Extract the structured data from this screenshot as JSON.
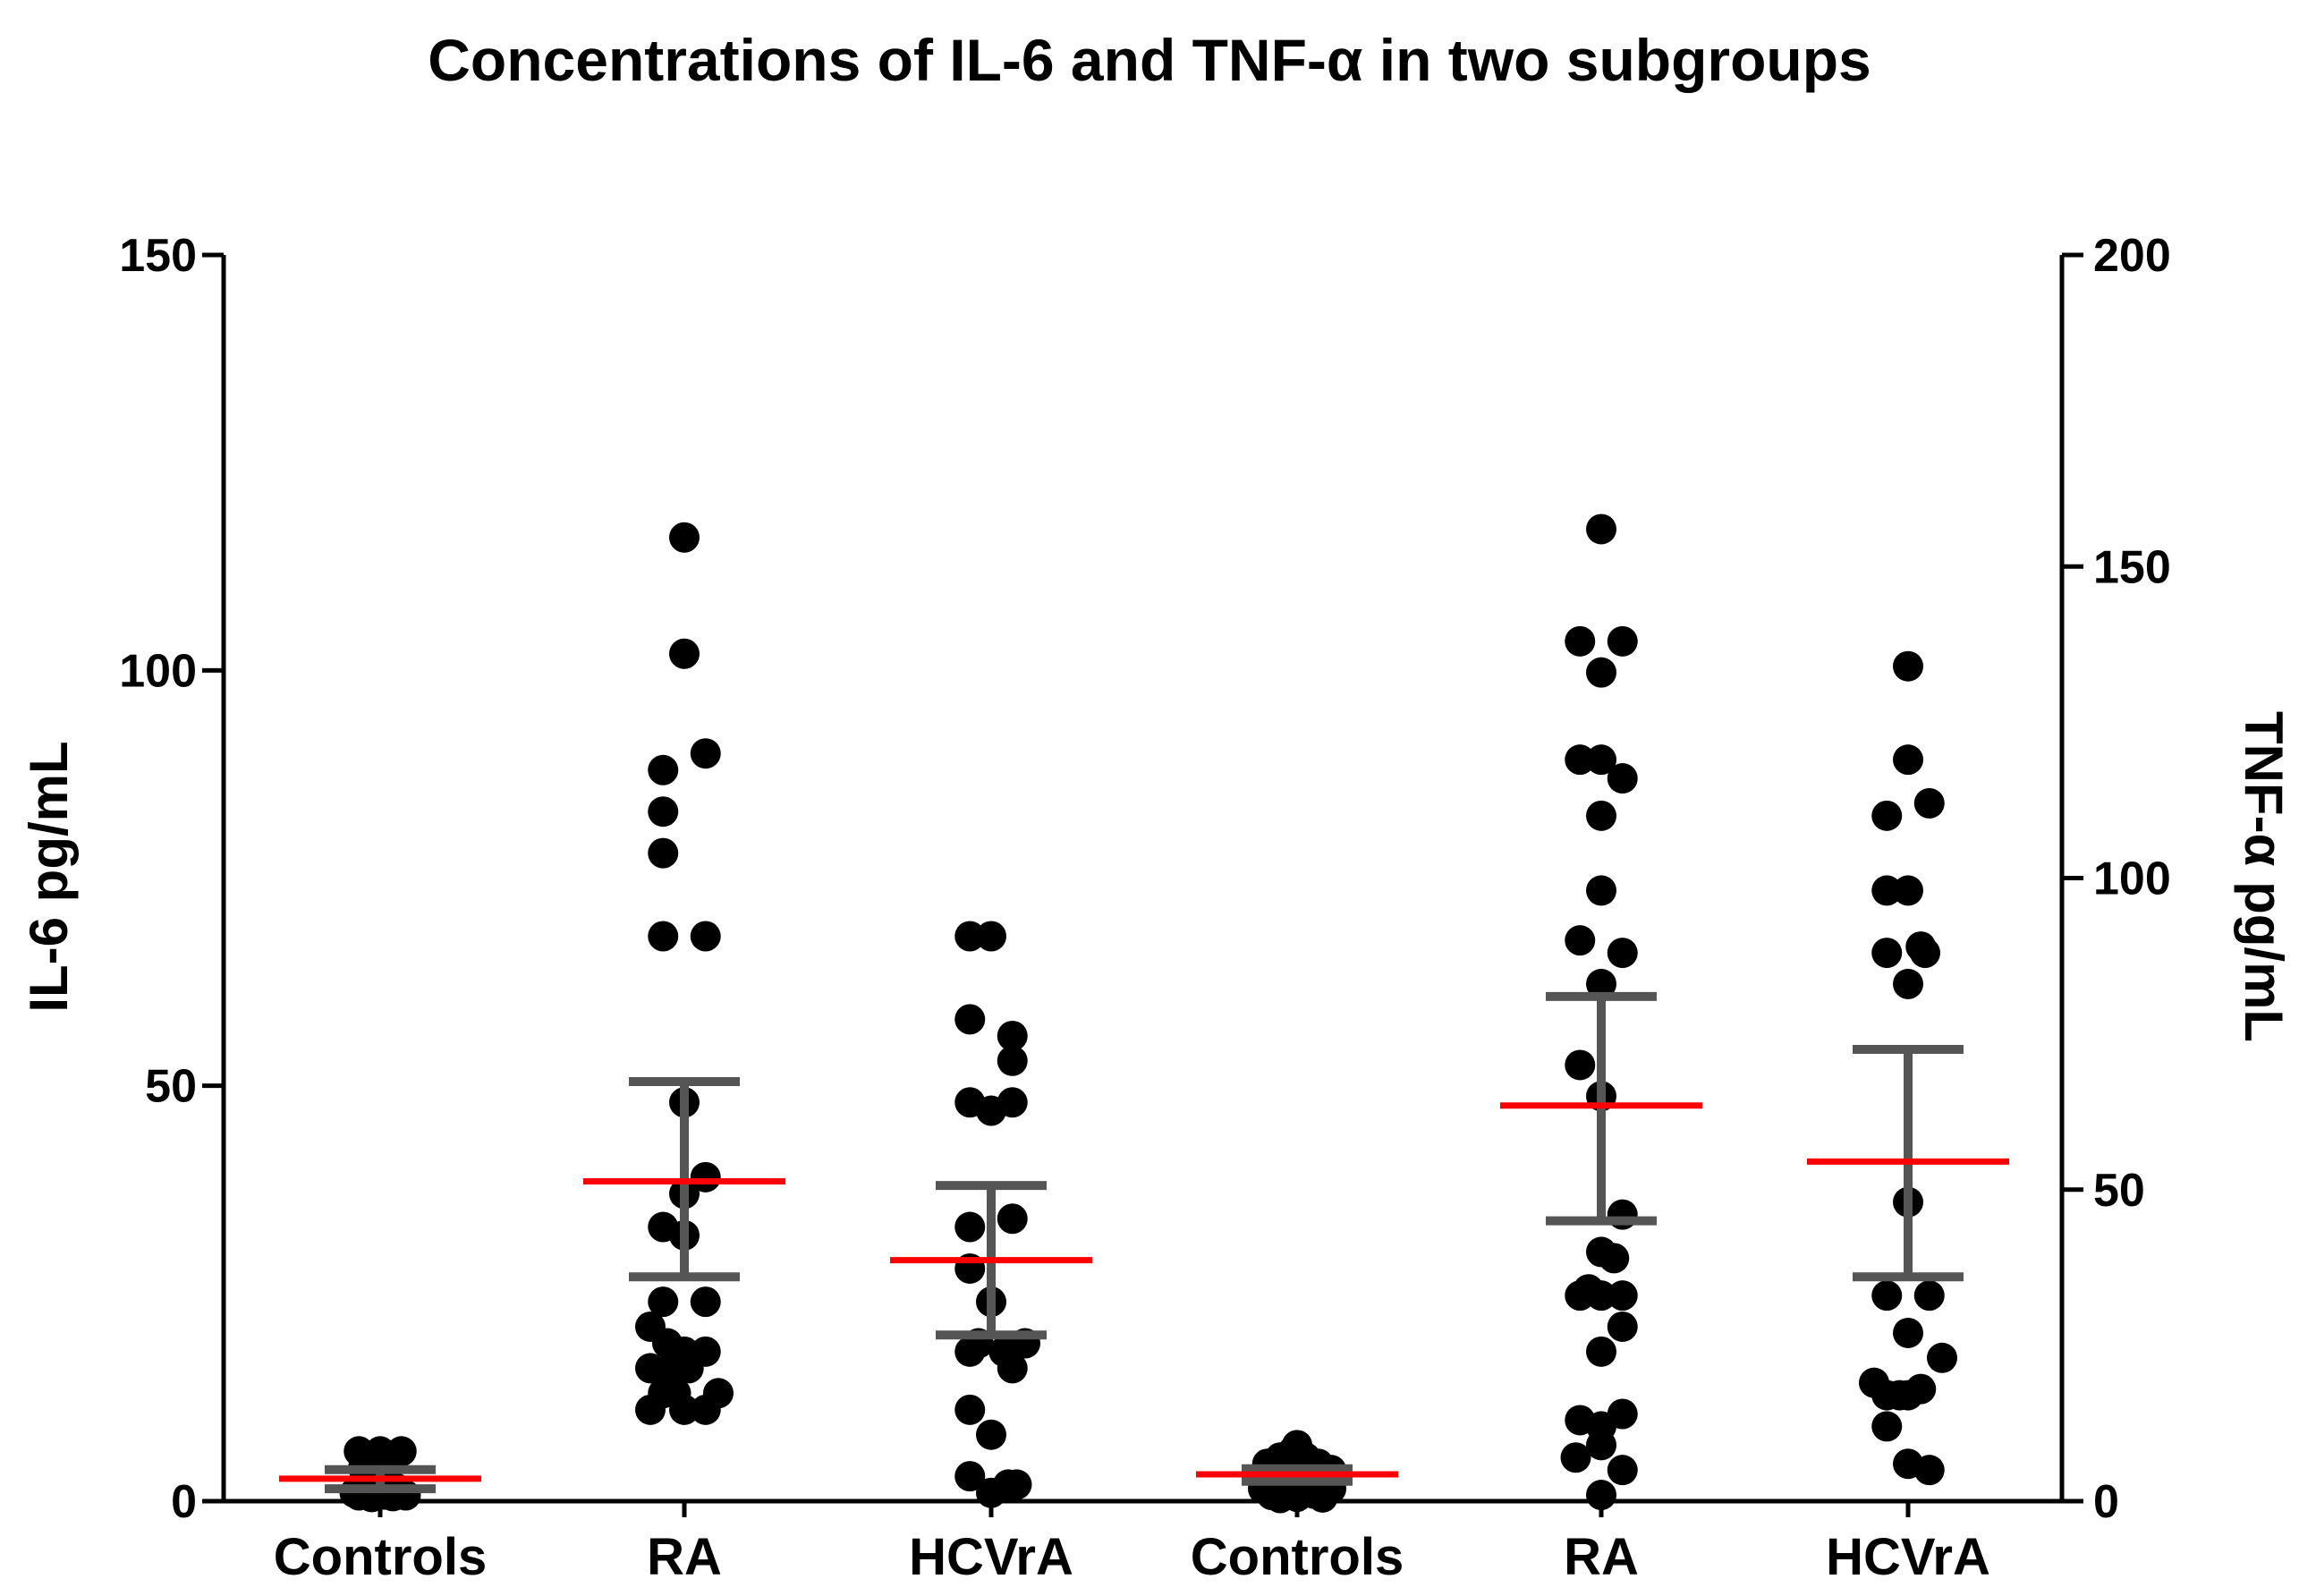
{
  "chart_data": {
    "type": "scatter",
    "title": "Concentrations of IL-6 and TNF-α in two subgroups",
    "categories": [
      "Controls",
      "RA",
      "HCVrA",
      "Controls",
      "RA",
      "HCVrA"
    ],
    "left_axis": {
      "label": "IL-6  pg/mL",
      "ylim": [
        0,
        150
      ],
      "ticks": [
        "0",
        "50",
        "100",
        "150"
      ],
      "tick_values": [
        0,
        50,
        100,
        150
      ]
    },
    "right_axis": {
      "label": "TNF-α pg/mL",
      "ylim": [
        0,
        200
      ],
      "ticks": [
        "0",
        "50",
        "100",
        "150",
        "200"
      ],
      "tick_values": [
        0,
        50,
        100,
        150,
        200
      ]
    },
    "colors": {
      "points": "#000000",
      "mean": "#ff0000",
      "error_bar": "#555555",
      "axis": "#000000"
    },
    "groups": [
      {
        "category": "Controls",
        "measure": "IL-6",
        "axis": "left",
        "points": [
          [
            -0.3,
            1
          ],
          [
            -0.25,
            0.7
          ],
          [
            -0.2,
            1.5
          ],
          [
            -0.15,
            1
          ],
          [
            -0.1,
            0.5
          ],
          [
            -0.05,
            1.3
          ],
          [
            0.0,
            2
          ],
          [
            0.05,
            0.8
          ],
          [
            0.1,
            1.2
          ],
          [
            0.15,
            0.6
          ],
          [
            0.2,
            1.5
          ],
          [
            0.25,
            0.9
          ],
          [
            0.3,
            0.7
          ],
          [
            -0.2,
            4
          ],
          [
            -0.05,
            3
          ],
          [
            0.08,
            3.5
          ],
          [
            -0.25,
            6
          ],
          [
            0.0,
            6
          ],
          [
            0.25,
            6
          ],
          [
            -0.1,
            5
          ],
          [
            0.15,
            5
          ]
        ],
        "mean": 2.7,
        "err_low": 1.5,
        "err_high": 3.8
      },
      {
        "category": "RA",
        "measure": "IL-6",
        "axis": "left",
        "points": [
          [
            0,
            116
          ],
          [
            0,
            102
          ],
          [
            -0.25,
            88
          ],
          [
            0.25,
            90
          ],
          [
            -0.25,
            83
          ],
          [
            -0.25,
            78
          ],
          [
            -0.25,
            68
          ],
          [
            0.25,
            68
          ],
          [
            0,
            48
          ],
          [
            0.25,
            39
          ],
          [
            0,
            37
          ],
          [
            -0.25,
            33
          ],
          [
            0,
            32
          ],
          [
            0.25,
            24
          ],
          [
            -0.25,
            24
          ],
          [
            -0.4,
            21
          ],
          [
            -0.2,
            19
          ],
          [
            0,
            18
          ],
          [
            0.25,
            18
          ],
          [
            -0.4,
            16
          ],
          [
            -0.15,
            16
          ],
          [
            0.05,
            16
          ],
          [
            -0.25,
            13
          ],
          [
            -0.1,
            13
          ],
          [
            0.4,
            13
          ],
          [
            -0.4,
            11
          ],
          [
            0,
            11
          ],
          [
            0.25,
            11
          ]
        ],
        "mean": 38.5,
        "err_low": 27,
        "err_high": 50.5
      },
      {
        "category": "HCVrA",
        "measure": "IL-6",
        "axis": "left",
        "points": [
          [
            -0.25,
            68
          ],
          [
            0,
            68
          ],
          [
            -0.25,
            58
          ],
          [
            0.25,
            56
          ],
          [
            0.25,
            53
          ],
          [
            -0.25,
            48
          ],
          [
            0,
            47
          ],
          [
            0.25,
            48
          ],
          [
            -0.25,
            33
          ],
          [
            0.25,
            34
          ],
          [
            -0.25,
            28
          ],
          [
            0,
            24
          ],
          [
            -0.25,
            18
          ],
          [
            -0.15,
            19
          ],
          [
            0.15,
            18
          ],
          [
            0.4,
            19
          ],
          [
            0.25,
            16
          ],
          [
            -0.25,
            11
          ],
          [
            0,
            8
          ],
          [
            -0.25,
            3
          ],
          [
            0.2,
            2
          ],
          [
            0.3,
            2
          ],
          [
            0,
            1
          ]
        ],
        "mean": 29,
        "err_low": 20,
        "err_high": 38
      },
      {
        "category": "Controls",
        "measure": "TNF-α",
        "axis": "right",
        "points": [
          [
            -0.4,
            2
          ],
          [
            -0.3,
            1
          ],
          [
            -0.2,
            0.5
          ],
          [
            -0.1,
            1.5
          ],
          [
            0.0,
            0.7
          ],
          [
            0.1,
            2
          ],
          [
            0.2,
            1.2
          ],
          [
            0.3,
            0.6
          ],
          [
            0.4,
            2
          ],
          [
            -0.3,
            4
          ],
          [
            -0.15,
            5
          ],
          [
            0.0,
            4
          ],
          [
            0.15,
            5
          ],
          [
            0.3,
            3
          ],
          [
            -0.2,
            7
          ],
          [
            -0.05,
            8
          ],
          [
            0.1,
            7
          ],
          [
            0.25,
            6
          ],
          [
            -0.35,
            6
          ],
          [
            0.4,
            5
          ],
          [
            0,
            9
          ]
        ],
        "mean": 4.3,
        "err_low": 3.2,
        "err_high": 5.2
      },
      {
        "category": "RA",
        "measure": "TNF-α",
        "axis": "right",
        "points": [
          [
            0,
            156
          ],
          [
            -0.25,
            138
          ],
          [
            0.25,
            138
          ],
          [
            0,
            133
          ],
          [
            -0.25,
            119
          ],
          [
            0,
            119
          ],
          [
            0.25,
            116
          ],
          [
            0,
            110
          ],
          [
            0,
            98
          ],
          [
            -0.25,
            90
          ],
          [
            0.25,
            88
          ],
          [
            0,
            83
          ],
          [
            -0.25,
            70
          ],
          [
            0,
            65
          ],
          [
            0.25,
            46
          ],
          [
            0,
            40
          ],
          [
            0.15,
            39
          ],
          [
            0,
            33
          ],
          [
            -0.25,
            33
          ],
          [
            -0.15,
            34
          ],
          [
            0.25,
            33
          ],
          [
            0.25,
            28
          ],
          [
            0,
            24
          ],
          [
            -0.25,
            13
          ],
          [
            0,
            12
          ],
          [
            0.25,
            14
          ],
          [
            -0.3,
            7
          ],
          [
            0,
            9
          ],
          [
            0.25,
            5
          ],
          [
            0,
            1
          ]
        ],
        "mean": 63.5,
        "err_low": 45,
        "err_high": 81
      },
      {
        "category": "HCVrA",
        "measure": "TNF-α",
        "axis": "right",
        "points": [
          [
            0,
            134
          ],
          [
            0,
            119
          ],
          [
            -0.25,
            110
          ],
          [
            0.25,
            112
          ],
          [
            -0.25,
            98
          ],
          [
            0,
            98
          ],
          [
            -0.25,
            88
          ],
          [
            0.2,
            88
          ],
          [
            0,
            83
          ],
          [
            0.15,
            89
          ],
          [
            0,
            48
          ],
          [
            -0.25,
            33
          ],
          [
            0.25,
            33
          ],
          [
            0,
            27
          ],
          [
            -0.4,
            19
          ],
          [
            -0.25,
            17
          ],
          [
            -0.1,
            17
          ],
          [
            0.15,
            18
          ],
          [
            0.4,
            23
          ],
          [
            0,
            17
          ],
          [
            -0.25,
            12
          ],
          [
            0,
            6
          ],
          [
            0.25,
            5
          ]
        ],
        "mean": 54.5,
        "err_low": 36,
        "err_high": 72.5
      }
    ]
  }
}
